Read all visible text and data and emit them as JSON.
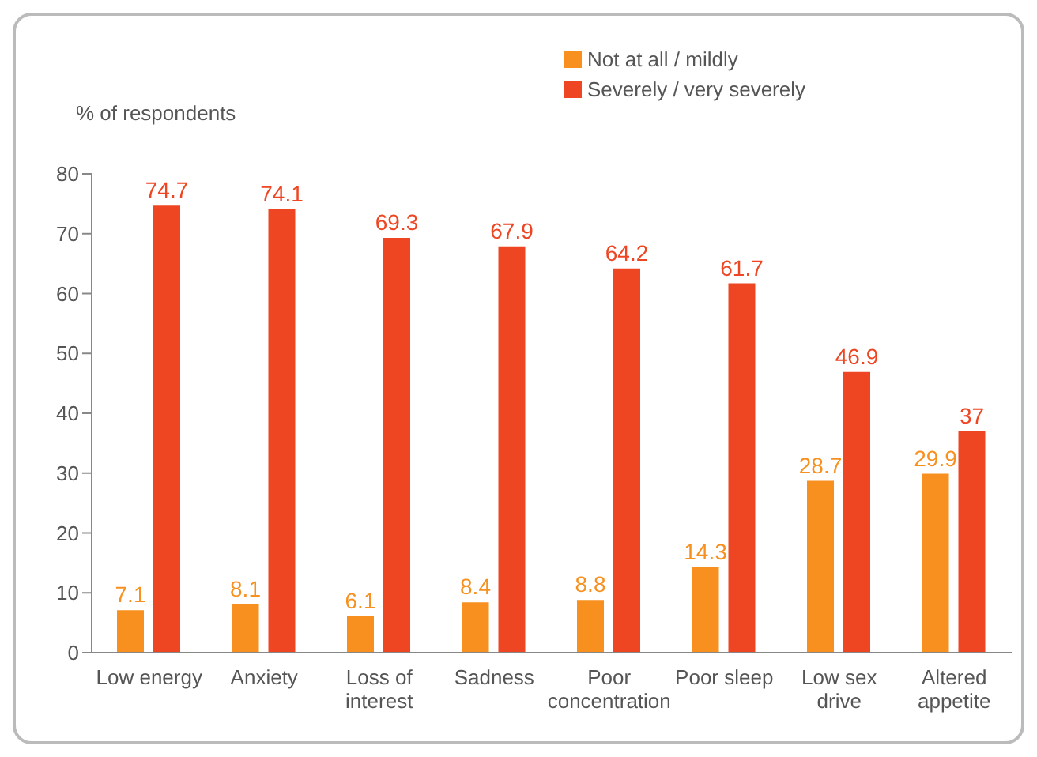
{
  "chart_data": {
    "type": "bar",
    "ylabel": "% of respondents",
    "categories": [
      "Low energy",
      "Anxiety",
      "Loss of interest",
      "Sadness",
      "Poor concentration",
      "Poor sleep",
      "Low sex drive",
      "Altered appetite"
    ],
    "series": [
      {
        "name": "Not at all / mildly",
        "color": "#f7901e",
        "values": [
          7.1,
          8.1,
          6.1,
          8.4,
          8.8,
          14.3,
          28.7,
          29.9
        ]
      },
      {
        "name": "Severely / very severely",
        "color": "#ee4623",
        "values": [
          74.7,
          74.1,
          69.3,
          67.9,
          64.2,
          61.7,
          46.9,
          37
        ]
      }
    ],
    "ylim": [
      0,
      80
    ],
    "yticks": [
      0,
      10,
      20,
      30,
      40,
      50,
      60,
      70,
      80
    ],
    "grid": false,
    "legend": "top",
    "data_labels": true
  }
}
